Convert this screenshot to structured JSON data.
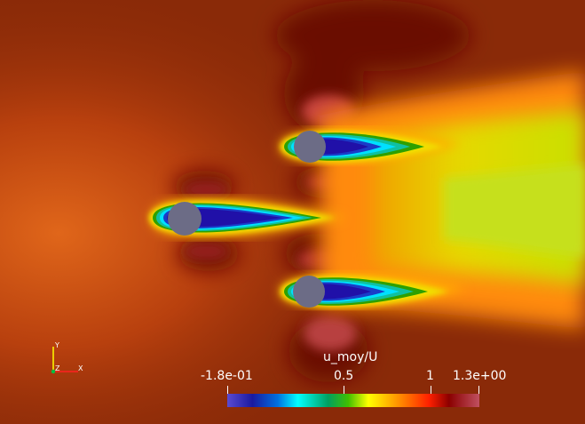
{
  "field": {
    "colorbar": {
      "title": "u_moy/U",
      "labels": [
        "-1.8e-01",
        "0.5",
        "1",
        "1.3e+00"
      ],
      "range": [
        -0.18,
        1.3
      ],
      "colors": [
        "#3b4cc0",
        "#1a1aa0",
        "#00ffff",
        "#008000",
        "#ffff00",
        "#ff8000",
        "#ff0000",
        "#8b0000",
        "#b04050"
      ]
    },
    "axes": {
      "x": "X",
      "y": "Y",
      "z": "Z"
    },
    "colors": {
      "freestream": "#8a2a08",
      "deficit": "#3a1fb0",
      "cylinder": "#6c6c86"
    }
  }
}
